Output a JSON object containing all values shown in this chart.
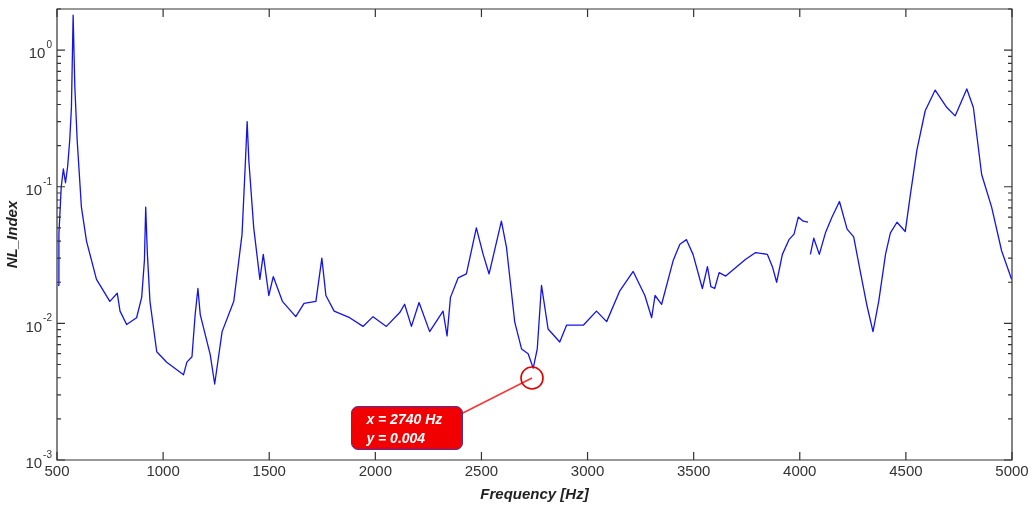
{
  "chart_data": {
    "type": "line",
    "xlabel": "Frequency [Hz]",
    "ylabel": "NL_Index",
    "x": [
      505,
      509,
      520,
      530,
      540,
      550,
      560,
      568,
      576,
      584,
      595,
      615,
      639,
      686,
      749,
      784,
      797,
      828,
      875,
      899,
      912,
      918,
      926,
      938,
      970,
      1017,
      1096,
      1112,
      1136,
      1151,
      1164,
      1175,
      1222,
      1243,
      1278,
      1333,
      1372,
      1388,
      1396,
      1404,
      1427,
      1456,
      1472,
      1498,
      1519,
      1562,
      1625,
      1664,
      1720,
      1748,
      1767,
      1806,
      1879,
      1942,
      1989,
      2052,
      2115,
      2138,
      2170,
      2206,
      2256,
      2319,
      2338,
      2354,
      2390,
      2429,
      2476,
      2508,
      2536,
      2594,
      2618,
      2657,
      2689,
      2720,
      2744,
      2763,
      2783,
      2814,
      2869,
      2901,
      2980,
      3042,
      3090,
      3152,
      3215,
      3270,
      3302,
      3318,
      3349,
      3404,
      3435,
      3466,
      3497,
      3541,
      3565,
      3581,
      3599,
      3620,
      3651,
      3745,
      3792,
      3847,
      3871,
      3891,
      3918,
      3949,
      3973,
      3993,
      4016,
      4039,
      4045,
      4050,
      4066,
      4092,
      4121,
      4152,
      4187,
      4223,
      4254,
      4285,
      4317,
      4345,
      4372,
      4404,
      4427,
      4458,
      4497,
      4520,
      4552,
      4591,
      4638,
      4693,
      4732,
      4787,
      4818,
      4857,
      4904,
      4951,
      4998
    ],
    "series": [
      {
        "color": "#1414e6",
        "values": [
          0.019,
          0.045,
          0.1,
          0.135,
          0.107,
          0.14,
          0.22,
          0.38,
          1.8,
          0.54,
          0.22,
          0.071,
          0.04,
          0.021,
          0.0145,
          0.0166,
          0.0123,
          0.0098,
          0.011,
          0.0155,
          0.029,
          0.071,
          0.032,
          0.0145,
          0.0062,
          0.0052,
          0.0042,
          0.0052,
          0.0057,
          0.0116,
          0.018,
          0.0116,
          0.0059,
          0.0036,
          0.0087,
          0.0145,
          0.045,
          0.155,
          0.3,
          0.155,
          0.05,
          0.021,
          0.032,
          0.016,
          0.022,
          0.0145,
          0.0112,
          0.014,
          0.0145,
          0.03,
          0.016,
          0.0123,
          0.011,
          0.0095,
          0.0112,
          0.0095,
          0.012,
          0.0138,
          0.0095,
          0.0142,
          0.0087,
          0.0123,
          0.0081,
          0.0155,
          0.0215,
          0.023,
          0.05,
          0.032,
          0.023,
          0.056,
          0.036,
          0.0102,
          0.0065,
          0.006,
          0.0047,
          0.0065,
          0.019,
          0.0091,
          0.0073,
          0.0097,
          0.0097,
          0.0123,
          0.0103,
          0.0173,
          0.024,
          0.016,
          0.011,
          0.016,
          0.0138,
          0.029,
          0.038,
          0.041,
          0.032,
          0.018,
          0.026,
          0.0186,
          0.018,
          0.0235,
          0.0222,
          0.0295,
          0.033,
          0.032,
          0.026,
          0.02,
          0.032,
          0.041,
          0.045,
          0.06,
          0.056,
          0.055,
          null,
          0.032,
          0.042,
          0.032,
          0.046,
          0.06,
          0.078,
          0.049,
          0.043,
          0.024,
          0.0134,
          0.0087,
          0.0145,
          0.032,
          0.046,
          0.055,
          0.047,
          0.085,
          0.186,
          0.36,
          0.51,
          0.38,
          0.33,
          0.52,
          0.38,
          0.123,
          0.071,
          0.034,
          0.021
        ]
      }
    ],
    "xlim": [
      500,
      5000
    ],
    "xticks": [
      500,
      1000,
      1500,
      2000,
      2500,
      3000,
      3500,
      4000,
      4500,
      5000
    ],
    "ylim": [
      0.001,
      2
    ],
    "log": true,
    "yticks": [
      {
        "value": 0.001,
        "label": "10$^{-3}$"
      },
      {
        "value": 0.002,
        "label": null
      },
      {
        "value": 0.003,
        "label": null
      },
      {
        "value": 0.004,
        "label": null
      },
      {
        "value": 0.005,
        "label": null
      },
      {
        "value": 0.006,
        "label": null
      },
      {
        "value": 0.007,
        "label": null
      },
      {
        "value": 0.008,
        "label": null
      },
      {
        "value": 0.009,
        "label": null
      },
      {
        "value": 0.01,
        "label": "10$^{-2}$"
      },
      {
        "value": 0.02,
        "label": null
      },
      {
        "value": 0.03,
        "label": null
      },
      {
        "value": 0.04,
        "label": null
      },
      {
        "value": 0.05,
        "label": null
      },
      {
        "value": 0.06,
        "label": null
      },
      {
        "value": 0.07,
        "label": null
      },
      {
        "value": 0.08,
        "label": null
      },
      {
        "value": 0.09,
        "label": null
      },
      {
        "value": 0.1,
        "label": "10$^{-1}$"
      },
      {
        "value": 0.2,
        "label": null
      },
      {
        "value": 0.3,
        "label": null
      },
      {
        "value": 0.4,
        "label": null
      },
      {
        "value": 0.5,
        "label": null
      },
      {
        "value": 0.6,
        "label": null
      },
      {
        "value": 0.7,
        "label": null
      },
      {
        "value": 0.8,
        "label": null
      },
      {
        "value": 0.9,
        "label": null
      },
      {
        "value": 1,
        "label": "10$^{0}$"
      },
      {
        "value": 2,
        "label": null
      }
    ],
    "grid": false,
    "legend": false,
    "marker": "none",
    "line_style": "solid",
    "annotations": [
      {
        "text": "x = 2740 Hz\ny = 0.004",
        "x": 2740,
        "y": 0.004
      }
    ]
  }
}
